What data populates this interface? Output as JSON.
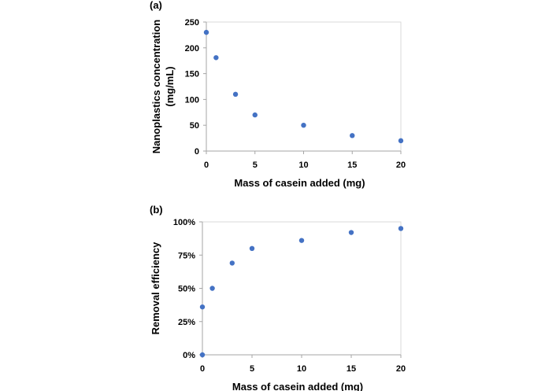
{
  "chart_data": [
    {
      "type": "scatter",
      "panel_label": "(a)",
      "xlabel": "Mass of casein added (mg)",
      "ylabel_lines": [
        "Nanoplastics concentration",
        "(mg/mL)"
      ],
      "xlim": [
        0,
        20
      ],
      "ylim": [
        0,
        250
      ],
      "xticks": [
        0,
        5,
        10,
        15,
        20
      ],
      "yticks": [
        0,
        50,
        100,
        150,
        200,
        250
      ],
      "ytick_labels": [
        "0",
        "50",
        "100",
        "150",
        "200",
        "250"
      ],
      "grid": false,
      "legend": "none",
      "marker_color": "#4472C4",
      "series": [
        {
          "x": [
            0,
            1,
            3,
            5,
            10,
            15,
            20
          ],
          "y": [
            230,
            181,
            110,
            70,
            50,
            30,
            20
          ]
        }
      ]
    },
    {
      "type": "scatter",
      "panel_label": "(b)",
      "xlabel": "Mass of casein added (mg)",
      "ylabel_lines": [
        "Removal efficiency"
      ],
      "xlim": [
        0,
        20
      ],
      "ylim": [
        0,
        1
      ],
      "xticks": [
        0,
        5,
        10,
        15,
        20
      ],
      "yticks": [
        0,
        0.25,
        0.5,
        0.75,
        1
      ],
      "ytick_labels": [
        "0%",
        "25%",
        "50%",
        "75%",
        "100%"
      ],
      "grid": false,
      "legend": "none",
      "marker_color": "#4472C4",
      "series": [
        {
          "x": [
            0,
            0,
            1,
            3,
            5,
            10,
            15,
            20
          ],
          "y": [
            0,
            0.36,
            0.5,
            0.69,
            0.8,
            0.86,
            0.92,
            0.95
          ]
        }
      ]
    }
  ]
}
